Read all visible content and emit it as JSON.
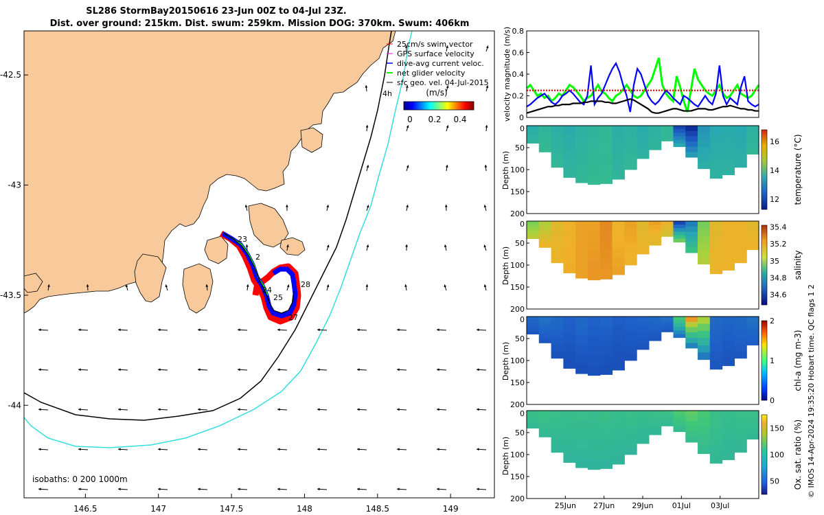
{
  "header": {
    "line1": "SL286 StormBay20150616 23-Jun 00Z to 04-Jul 23Z.",
    "line2": "Dist. over ground: 215km. Dist. swum: 259km. Mission DOG: 370km. Swum: 406km"
  },
  "footer": {
    "credit": "© IMOS 14-Apr-2024 19:35:20 Hobart time. QC flags 1  2"
  },
  "colors": {
    "land": "#f7c99b",
    "coast": "#000000",
    "iso200": "#000000",
    "iso1000": "#33dede",
    "track_red": "#ff0000",
    "track_blue": "#0000ff",
    "track_green": "#00ff00",
    "track_magenta": "#ff00ff"
  },
  "map": {
    "legend": [
      "25cm/s swim vector",
      "GPS surface velocity",
      "dive-avg current veloc.",
      "net glider velocity",
      "sfc geo. vel. 04-Jul-2015"
    ],
    "colorbar": {
      "title": "(m/s)",
      "ticks": [
        "0",
        "0.2",
        "0.4"
      ]
    },
    "day_labels": [
      "23",
      "2",
      "24",
      "25",
      "28",
      "27"
    ],
    "corner_label": "4h",
    "isobath_note": "isobaths: 0   200  1000m"
  },
  "chart_data": [
    {
      "type": "map",
      "xlim": [
        146.08,
        149.3
      ],
      "ylim": [
        -44.42,
        -42.3
      ],
      "x_ticks": [
        "146.5",
        "147",
        "147.5",
        "148",
        "148.5",
        "149"
      ],
      "y_ticks": [
        "-42.5",
        "-43",
        "-43.5",
        "-44"
      ],
      "x_tick_values": [
        146.5,
        147,
        147.5,
        148,
        148.5,
        149
      ],
      "y_tick_values": [
        -42.5,
        -43,
        -43.5,
        -44
      ]
    },
    {
      "type": "line",
      "ylabel": "velocity magnitude (m/s)",
      "ylim": [
        0,
        0.8
      ],
      "yticks": [
        "0",
        "0.2",
        "0.4",
        "0.6",
        "0.8"
      ],
      "x_range_days": [
        0,
        12
      ],
      "series": [
        {
          "name": "net glider velocity",
          "color": "#00ff00",
          "values": [
            0.27,
            0.3,
            0.25,
            0.2,
            0.22,
            0.18,
            0.2,
            0.15,
            0.18,
            0.22,
            0.2,
            0.25,
            0.3,
            0.28,
            0.24,
            0.2,
            0.15,
            0.18,
            0.2,
            0.25,
            0.3,
            0.24,
            0.22,
            0.18,
            0.15,
            0.2,
            0.22,
            0.26,
            0.3,
            0.25,
            0.2,
            0.18,
            0.2,
            0.25,
            0.3,
            0.35,
            0.45,
            0.55,
            0.3,
            0.22,
            0.18,
            0.15,
            0.38,
            0.28,
            0.15,
            0.05,
            0.25,
            0.45,
            0.35,
            0.3,
            0.25,
            0.22,
            0.2,
            0.25,
            0.3,
            0.22,
            0.18,
            0.2,
            0.25,
            0.3,
            0.22,
            0.2,
            0.18,
            0.2,
            0.25,
            0.3
          ]
        },
        {
          "name": "dive-avg current veloc.",
          "color": "#0000ff",
          "values": [
            0.1,
            0.12,
            0.15,
            0.18,
            0.2,
            0.22,
            0.18,
            0.14,
            0.12,
            0.15,
            0.2,
            0.22,
            0.25,
            0.22,
            0.18,
            0.14,
            0.12,
            0.2,
            0.48,
            0.12,
            0.18,
            0.22,
            0.3,
            0.38,
            0.45,
            0.5,
            0.42,
            0.3,
            0.2,
            0.05,
            0.3,
            0.45,
            0.4,
            0.3,
            0.2,
            0.15,
            0.12,
            0.15,
            0.2,
            0.25,
            0.22,
            0.18,
            0.15,
            0.12,
            0.2,
            0.18,
            0.15,
            0.12,
            0.1,
            0.15,
            0.2,
            0.15,
            0.12,
            0.22,
            0.48,
            0.2,
            0.12,
            0.18,
            0.15,
            0.12,
            0.28,
            0.38,
            0.15,
            0.12,
            0.1,
            0.12
          ]
        },
        {
          "name": "25cm/s swim vector",
          "color": "#ff0000",
          "values": [
            0.25,
            0.25,
            0.25,
            0.25,
            0.25,
            0.25,
            0.25,
            0.25,
            0.25,
            0.25,
            0.25,
            0.25,
            0.25,
            0.25,
            0.25,
            0.25,
            0.25,
            0.25,
            0.25,
            0.25,
            0.25,
            0.25,
            0.25,
            0.25,
            0.25,
            0.25,
            0.25,
            0.25,
            0.25,
            0.25,
            0.25,
            0.25,
            0.25,
            0.25,
            0.25,
            0.25,
            0.25,
            0.25,
            0.25,
            0.25,
            0.25,
            0.25,
            0.25,
            0.25,
            0.25,
            0.25,
            0.25,
            0.25,
            0.25,
            0.25,
            0.25,
            0.25,
            0.25,
            0.25,
            0.25,
            0.25,
            0.25,
            0.25,
            0.25,
            0.25,
            0.25,
            0.25,
            0.25,
            0.25,
            0.25,
            0.25
          ]
        },
        {
          "name": "sfc geo. vel.",
          "color": "#000000",
          "values": [
            0.04,
            0.05,
            0.06,
            0.07,
            0.08,
            0.09,
            0.1,
            0.1,
            0.11,
            0.11,
            0.12,
            0.12,
            0.12,
            0.13,
            0.13,
            0.13,
            0.14,
            0.14,
            0.15,
            0.15,
            0.15,
            0.15,
            0.14,
            0.14,
            0.13,
            0.13,
            0.14,
            0.15,
            0.16,
            0.17,
            0.16,
            0.14,
            0.12,
            0.1,
            0.08,
            0.05,
            0.04,
            0.04,
            0.05,
            0.06,
            0.07,
            0.08,
            0.08,
            0.07,
            0.06,
            0.06,
            0.06,
            0.07,
            0.08,
            0.08,
            0.08,
            0.07,
            0.07,
            0.08,
            0.09,
            0.1,
            0.1,
            0.11,
            0.1,
            0.09,
            0.08,
            0.08,
            0.07,
            0.07,
            0.06,
            0.06
          ]
        }
      ]
    },
    {
      "type": "heatmap",
      "label": "temperature (°C)",
      "ylabel": "Depth (m)",
      "y_ticks": [
        "0",
        "50",
        "100",
        "150",
        "200"
      ],
      "cbar_ticks": [
        "12",
        "14",
        "16"
      ],
      "cbar_values": [
        12,
        14,
        16
      ],
      "crange": [
        11.3,
        16.8
      ],
      "section_depth_profile_m": [
        40,
        60,
        95,
        118,
        130,
        134,
        132,
        122,
        100,
        75,
        55,
        35,
        48,
        72,
        98,
        120,
        112,
        95,
        65
      ],
      "surface_values": [
        13.6,
        13.9,
        13.7,
        13.6,
        13.8,
        13.9,
        14.0,
        13.7,
        13.8,
        13.6,
        13.8,
        14.0,
        12.0,
        11.6,
        13.2,
        13.5,
        13.6,
        13.5,
        13.8
      ],
      "deep_values": [
        13.9,
        14.1,
        14.0,
        13.9,
        14.0,
        14.1,
        14.1,
        13.9,
        14.0,
        13.8,
        13.9,
        14.0,
        13.5,
        13.3,
        13.7,
        13.8,
        13.8,
        13.7,
        14.0
      ]
    },
    {
      "type": "heatmap",
      "label": "salinity",
      "ylabel": "Depth (m)",
      "y_ticks": [
        "0",
        "50",
        "100",
        "150",
        "200"
      ],
      "cbar_ticks": [
        "34.6",
        "34.8",
        "35",
        "35.2",
        "35.4"
      ],
      "cbar_values": [
        34.6,
        34.8,
        35.0,
        35.2,
        35.4
      ],
      "crange": [
        34.48,
        35.42
      ],
      "section_depth_profile_m": [
        40,
        60,
        95,
        118,
        130,
        134,
        132,
        122,
        100,
        75,
        55,
        35,
        48,
        72,
        98,
        120,
        112,
        95,
        65
      ],
      "surface_values": [
        35.12,
        35.2,
        35.28,
        35.3,
        35.32,
        35.32,
        35.34,
        35.3,
        35.32,
        35.28,
        35.32,
        35.3,
        34.6,
        34.75,
        35.12,
        35.28,
        35.3,
        35.3,
        35.28
      ],
      "deep_values": [
        35.22,
        35.3,
        35.3,
        35.31,
        35.32,
        35.33,
        35.33,
        35.32,
        35.3,
        35.3,
        35.28,
        35.25,
        35.1,
        35.0,
        35.2,
        35.3,
        35.3,
        35.3,
        35.3
      ]
    },
    {
      "type": "heatmap",
      "label": "chl-a (mg m-3)",
      "ylabel": "Depth (m)",
      "y_ticks": [
        "0",
        "50",
        "100",
        "150",
        "200"
      ],
      "cbar_ticks": [
        "0",
        "1",
        "2"
      ],
      "cbar_values": [
        0,
        1,
        2
      ],
      "crange": [
        0,
        2
      ],
      "section_depth_profile_m": [
        40,
        60,
        95,
        118,
        130,
        134,
        132,
        122,
        100,
        75,
        55,
        35,
        48,
        72,
        98,
        120,
        112,
        95,
        65
      ],
      "surface_values": [
        0.45,
        0.5,
        0.45,
        0.4,
        0.45,
        0.4,
        0.42,
        0.38,
        0.4,
        0.42,
        0.45,
        0.5,
        1.2,
        1.8,
        1.5,
        0.45,
        0.42,
        0.45,
        0.5
      ],
      "deep_values": [
        0.35,
        0.35,
        0.32,
        0.3,
        0.3,
        0.32,
        0.3,
        0.3,
        0.32,
        0.33,
        0.35,
        0.35,
        0.5,
        0.6,
        0.55,
        0.35,
        0.33,
        0.35,
        0.38
      ]
    },
    {
      "type": "heatmap",
      "label": "Ox. sat. ratio (%)",
      "ylabel": "Depth (m)",
      "y_ticks": [
        "0",
        "50",
        "100",
        "150",
        "200"
      ],
      "cbar_ticks": [
        "50",
        "100",
        "150"
      ],
      "cbar_values": [
        50,
        100,
        150
      ],
      "crange": [
        25,
        175
      ],
      "x_ticks": [
        "25Jun",
        "27Jun",
        "29Jun",
        "01Jul",
        "03Jul"
      ],
      "x_tick_days": [
        2,
        4,
        6,
        8,
        10
      ],
      "section_depth_profile_m": [
        40,
        60,
        95,
        118,
        130,
        134,
        132,
        122,
        100,
        75,
        55,
        35,
        48,
        72,
        98,
        120,
        112,
        95,
        65
      ],
      "surface_values": [
        106,
        108,
        105,
        104,
        105,
        104,
        106,
        104,
        105,
        104,
        106,
        108,
        118,
        122,
        116,
        106,
        104,
        105,
        106
      ],
      "deep_values": [
        100,
        100,
        98,
        97,
        96,
        96,
        96,
        96,
        97,
        98,
        99,
        100,
        102,
        104,
        102,
        100,
        98,
        99,
        100
      ]
    }
  ]
}
